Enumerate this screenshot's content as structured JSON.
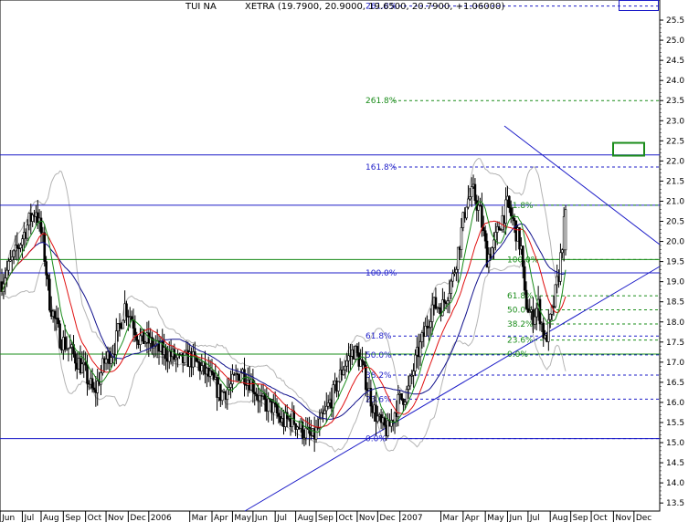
{
  "header": {
    "symbol": "TUI NA",
    "quote": "XETRA (19.7900, 20.9000, 19.6500, 20.7900, +1.06000)"
  },
  "chart_data": {
    "type": "candlestick",
    "symbol": "TUI NA",
    "exchange": "XETRA",
    "last_bar": {
      "open": 19.79,
      "high": 20.9,
      "low": 19.65,
      "close": 20.79,
      "change": 1.06
    },
    "ylim": [
      13.3,
      26.0
    ],
    "y_ticks": [
      "13.5",
      "14.0",
      "14.5",
      "15.0",
      "15.5",
      "16.0",
      "16.5",
      "17.0",
      "17.5",
      "18.0",
      "18.5",
      "19.0",
      "19.5",
      "20.0",
      "20.5",
      "21.0",
      "21.5",
      "22.0",
      "22.5",
      "23.0",
      "23.5",
      "24.0",
      "24.5",
      "25.0",
      "25.5"
    ],
    "x_ticks": [
      "Jun",
      "Jul",
      "Aug",
      "Sep",
      "Oct",
      "Nov",
      "Dec",
      "2006",
      "Mar",
      "Apr",
      "May",
      "Jun",
      "Jul",
      "Aug",
      "Sep",
      "Oct",
      "Nov",
      "Dec",
      "2007",
      "Mar",
      "Apr",
      "May",
      "Jun",
      "Jul",
      "Aug",
      "Sep",
      "Oct",
      "Nov",
      "Dec"
    ],
    "x_tick_index": [
      -1,
      12,
      23,
      36,
      49,
      61,
      74,
      86,
      110,
      123,
      135,
      147,
      160,
      172,
      184,
      196,
      208,
      220,
      233,
      257,
      270,
      283,
      296,
      308,
      321,
      333,
      345,
      358,
      370
    ],
    "fib_labels": [
      {
        "text": "261.8%",
        "price": 23.5,
        "color": "#1a8c1a"
      },
      {
        "text": "161.8%",
        "price": 21.85,
        "color": "#1c1cc8"
      },
      {
        "text": "100.0%",
        "price": 19.22,
        "color": "#1c1cc8"
      },
      {
        "text": "61.8%",
        "price": 17.65,
        "color": "#1c1cc8"
      },
      {
        "text": "50.0%",
        "price": 17.18,
        "color": "#1c1cc8"
      },
      {
        "text": "38.2%",
        "price": 16.68,
        "color": "#1c1cc8"
      },
      {
        "text": "23.6%",
        "price": 16.08,
        "color": "#1c1cc8"
      },
      {
        "text": "0.0%",
        "price": 15.1,
        "color": "#1c1cc8"
      },
      {
        "text": "61.8%",
        "price": 20.9,
        "color": "#1a8c1a"
      },
      {
        "text": "100.0%",
        "price": 19.55,
        "color": "#1a8c1a"
      },
      {
        "text": "61.8%",
        "price": 18.65,
        "color": "#1a8c1a"
      },
      {
        "text": "50.0%",
        "price": 18.3,
        "color": "#1a8c1a"
      },
      {
        "text": "38.2%",
        "price": 17.95,
        "color": "#1a8c1a"
      },
      {
        "text": "23.6%",
        "price": 17.55,
        "color": "#1a8c1a"
      },
      {
        "text": "0.0%",
        "price": 17.2,
        "color": "#1a8c1a"
      },
      {
        "text": "261.8%",
        "price": 25.85,
        "color": "#1c1cc8"
      }
    ],
    "horizontal_lines": [
      {
        "price": 22.15,
        "color": "#1c1cc8",
        "style": "solid"
      },
      {
        "price": 20.9,
        "color": "#1c1cc8",
        "style": "solid"
      },
      {
        "price": 19.22,
        "color": "#1c1cc8",
        "style": "solid"
      },
      {
        "price": 19.55,
        "color": "#1a8c1a",
        "style": "solid"
      },
      {
        "price": 17.2,
        "color": "#1a8c1a",
        "style": "solid"
      },
      {
        "price": 15.1,
        "color": "#1c1cc8",
        "style": "solid"
      }
    ],
    "colors": {
      "candle": "#000000",
      "ma_short": "#1a8c1a",
      "ma_mid": "#e01010",
      "ma_long": "#10108c",
      "bands": "#b4b4b4",
      "lines": "#1c1cc8"
    },
    "price_path": [
      [
        0,
        19.0
      ],
      [
        8,
        19.7
      ],
      [
        16,
        20.5
      ],
      [
        20,
        20.8
      ],
      [
        24,
        20.0
      ],
      [
        28,
        18.5
      ],
      [
        34,
        17.6
      ],
      [
        40,
        17.3
      ],
      [
        48,
        16.8
      ],
      [
        54,
        16.2
      ],
      [
        60,
        17.0
      ],
      [
        66,
        17.4
      ],
      [
        72,
        18.4
      ],
      [
        76,
        18.1
      ],
      [
        80,
        17.6
      ],
      [
        86,
        17.5
      ],
      [
        92,
        17.3
      ],
      [
        98,
        17.2
      ],
      [
        104,
        17.0
      ],
      [
        110,
        17.1
      ],
      [
        116,
        16.9
      ],
      [
        122,
        16.6
      ],
      [
        128,
        16.2
      ],
      [
        134,
        16.4
      ],
      [
        140,
        16.8
      ],
      [
        146,
        16.5
      ],
      [
        152,
        16.0
      ],
      [
        158,
        15.9
      ],
      [
        164,
        15.5
      ],
      [
        170,
        15.6
      ],
      [
        176,
        15.3
      ],
      [
        182,
        15.1
      ],
      [
        188,
        15.6
      ],
      [
        194,
        16.2
      ],
      [
        200,
        16.9
      ],
      [
        206,
        17.3
      ],
      [
        210,
        17.0
      ],
      [
        214,
        16.4
      ],
      [
        218,
        15.8
      ],
      [
        222,
        15.4
      ],
      [
        226,
        15.3
      ],
      [
        232,
        16.0
      ],
      [
        238,
        16.3
      ],
      [
        242,
        17.0
      ],
      [
        248,
        17.8
      ],
      [
        252,
        18.4
      ],
      [
        258,
        18.4
      ],
      [
        264,
        19.1
      ],
      [
        268,
        20.0
      ],
      [
        272,
        21.0
      ],
      [
        276,
        21.2
      ],
      [
        280,
        20.7
      ],
      [
        284,
        19.6
      ],
      [
        288,
        19.9
      ],
      [
        292,
        20.5
      ],
      [
        296,
        20.9
      ],
      [
        300,
        20.4
      ],
      [
        304,
        19.8
      ],
      [
        306,
        18.6
      ],
      [
        310,
        18.1
      ],
      [
        314,
        18.4
      ],
      [
        318,
        17.5
      ],
      [
        322,
        18.2
      ],
      [
        326,
        19.2
      ],
      [
        330,
        20.8
      ]
    ]
  }
}
